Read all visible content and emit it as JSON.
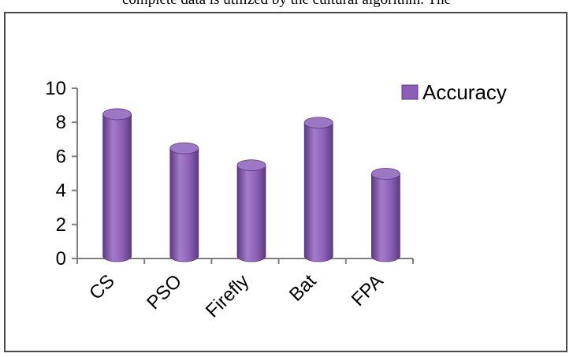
{
  "caption": "complete data is utilized by the cultural algorithm. The",
  "colors": {
    "bar_body": "#8a5fb5",
    "bar_dark": "#5c3a82",
    "bar_light": "#a47ccc",
    "bar_top": "#9c78c4",
    "axis": "#808080"
  },
  "chart_data": {
    "type": "bar",
    "style": "3d-cylinder",
    "categories": [
      "CS",
      "PSO",
      "Firefly",
      "Bat",
      "FPA"
    ],
    "series": [
      {
        "name": "Accuracy",
        "values": [
          8.8,
          6.8,
          5.8,
          8.3,
          5.3
        ]
      }
    ],
    "ylim": [
      0,
      10
    ],
    "yticks": [
      0,
      2,
      4,
      6,
      8,
      10
    ],
    "title": "",
    "xlabel": "",
    "ylabel": "",
    "grid": false,
    "legend": "top-right"
  }
}
